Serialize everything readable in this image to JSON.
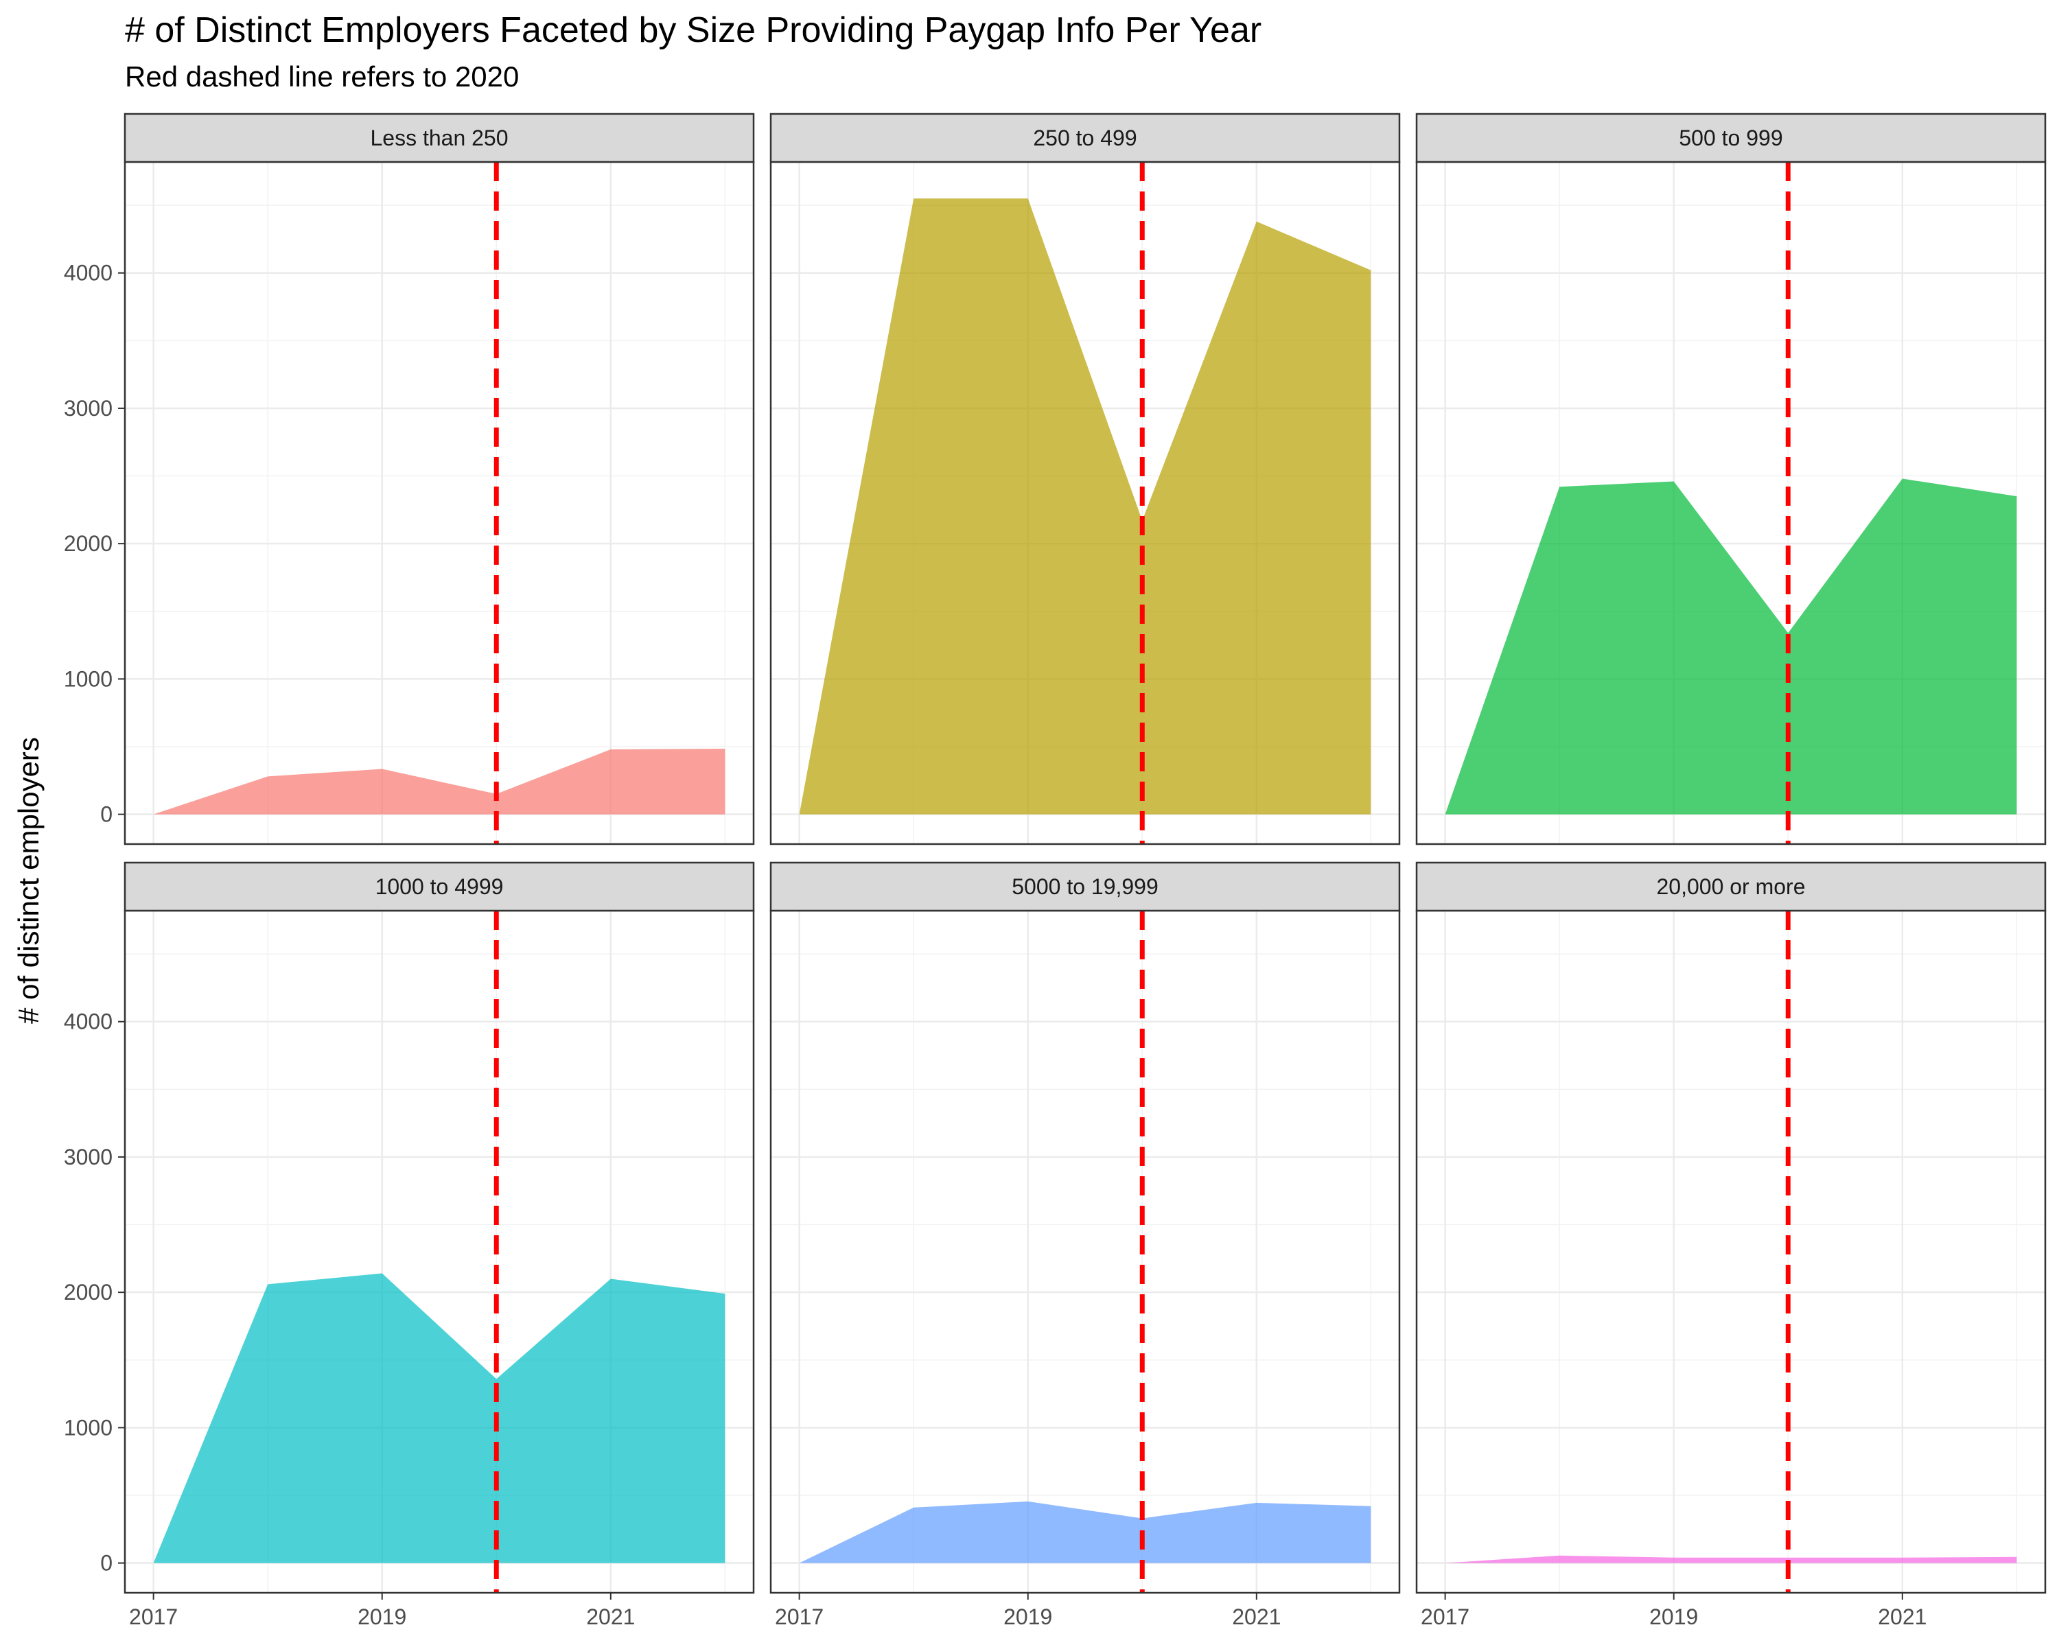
{
  "chart_data": {
    "type": "area",
    "title": "# of Distinct Employers Faceted by Size Providing Paygap Info Per Year",
    "subtitle": "Red dashed line refers to 2020",
    "xlabel": "",
    "ylabel": "# of distinct employers",
    "x_ticks": [
      2017,
      2019,
      2021
    ],
    "y_ticks": [
      0,
      1000,
      2000,
      3000,
      4000
    ],
    "xlim": [
      2016.75,
      2022.25
    ],
    "ylim": [
      -220,
      4820
    ],
    "reference_line": {
      "x": 2020,
      "color": "#ff0000",
      "style": "dashed"
    },
    "grid": true,
    "legend": "none",
    "x": [
      2017,
      2018,
      2019,
      2020,
      2021,
      2022
    ],
    "facets": [
      {
        "name": "Less than 250",
        "color": "#f8766d",
        "values": [
          0,
          280,
          335,
          150,
          480,
          485
        ]
      },
      {
        "name": "250 to 499",
        "color": "#b79f00",
        "values": [
          0,
          4550,
          4550,
          2170,
          4380,
          4020
        ]
      },
      {
        "name": "500 to 999",
        "color": "#00ba38",
        "values": [
          0,
          2420,
          2460,
          1340,
          2480,
          2350
        ]
      },
      {
        "name": "1000 to 4999",
        "color": "#00bfc4",
        "values": [
          0,
          2060,
          2140,
          1360,
          2100,
          1990
        ]
      },
      {
        "name": "5000 to 19,999",
        "color": "#619cff",
        "values": [
          0,
          410,
          455,
          330,
          445,
          420
        ]
      },
      {
        "name": "20,000 or more",
        "color": "#f564e3",
        "values": [
          0,
          55,
          40,
          40,
          40,
          45
        ]
      }
    ]
  }
}
